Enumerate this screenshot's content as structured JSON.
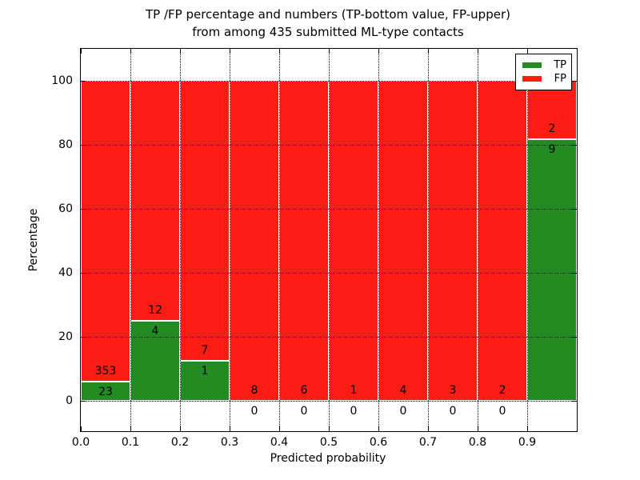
{
  "figure": {
    "title_line1": "TP /FP percentage and numbers (TP-bottom value, FP-upper)",
    "title_line2": "from among 435 submitted ML-type contacts",
    "xlabel": "Predicted probability",
    "ylabel": "Percentage"
  },
  "legend": {
    "position": "upper right",
    "items": [
      {
        "label": "TP",
        "color": "#228b22"
      },
      {
        "label": "FP",
        "color": "#fb1d13"
      }
    ]
  },
  "colors": {
    "tp_green": "#228b22",
    "fp_red": "#fb1d13",
    "axis_black": "#000000",
    "background_white": "#ffffff"
  },
  "chart_data": {
    "type": "bar",
    "subtype": "stacked-percentage-histogram",
    "title": "TP /FP percentage and numbers (TP-bottom value, FP-upper) from among 435 submitted ML-type contacts",
    "xlabel": "Predicted probability",
    "ylabel": "Percentage",
    "grid": true,
    "grid_style": "dotted",
    "legend_position": "upper right",
    "xlim": [
      0.0,
      1.0
    ],
    "ylim": [
      -10,
      110
    ],
    "bin_width": 0.1,
    "x_tick_labels": [
      "0.0",
      "0.1",
      "0.2",
      "0.3",
      "0.4",
      "0.5",
      "0.6",
      "0.7",
      "0.8",
      "0.9"
    ],
    "y_ticks": [
      0,
      20,
      40,
      60,
      80,
      100
    ],
    "bin_starts": [
      0.0,
      0.1,
      0.2,
      0.3,
      0.4,
      0.5,
      0.6,
      0.7,
      0.8,
      0.9
    ],
    "series": [
      {
        "name": "TP",
        "color": "#228b22",
        "counts": [
          23,
          4,
          1,
          0,
          0,
          0,
          0,
          0,
          0,
          9
        ]
      },
      {
        "name": "FP",
        "color": "#fb1d13",
        "counts": [
          353,
          12,
          7,
          8,
          6,
          1,
          4,
          3,
          2,
          2
        ]
      }
    ],
    "tp_percent_of_bin": [
      6.12,
      25.0,
      12.5,
      0.0,
      0.0,
      0.0,
      0.0,
      0.0,
      0.0,
      81.82
    ],
    "total_contacts": 435
  }
}
